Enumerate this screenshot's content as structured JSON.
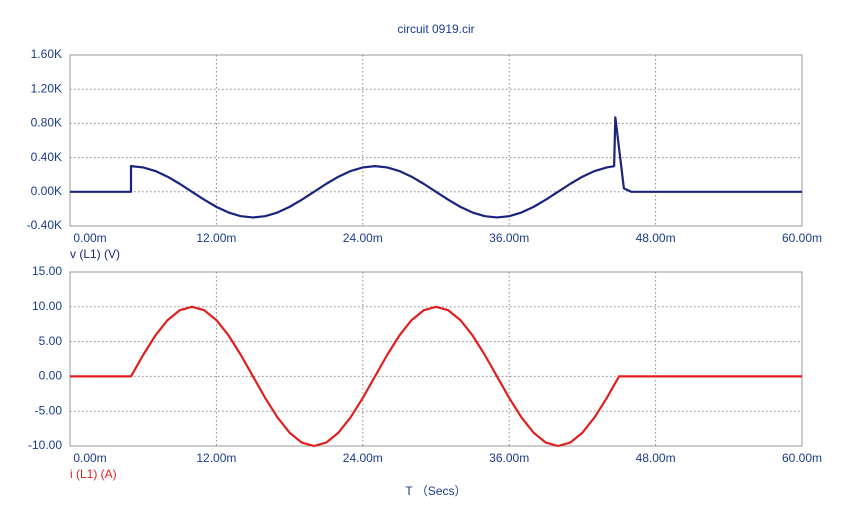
{
  "chart_data": [
    {
      "type": "line",
      "title": "circuit 0919.cir",
      "y_label": "v (L1) (V)",
      "y_label_color": "#1a237e",
      "x": [
        0,
        5,
        5,
        6,
        7,
        8,
        9,
        10,
        11,
        12,
        13,
        14,
        15,
        16,
        17,
        18,
        19,
        20,
        21,
        22,
        23,
        24,
        25,
        26,
        27,
        28,
        29,
        30,
        31,
        32,
        33,
        34,
        35,
        36,
        37,
        38,
        39,
        40,
        41,
        42,
        43,
        44,
        44.6,
        44.7,
        45.4,
        46,
        60
      ],
      "series": [
        {
          "color": "#1a237e",
          "values": [
            0,
            0,
            300,
            285.3,
            242.7,
            176.3,
            92.7,
            0,
            -92.7,
            -176.3,
            -242.7,
            -285.3,
            -300,
            -285.3,
            -242.7,
            -176.3,
            -92.7,
            0,
            92.7,
            176.3,
            242.7,
            285.3,
            300,
            285.3,
            242.7,
            176.3,
            92.7,
            0,
            -92.7,
            -176.3,
            -242.7,
            -285.3,
            -300,
            -285.3,
            -242.7,
            -176.3,
            -92.7,
            0,
            92.7,
            176.3,
            242.7,
            285.3,
            300,
            870,
            40,
            0,
            0
          ]
        }
      ],
      "xlim": [
        0,
        60
      ],
      "xticks": [
        {
          "value": 0,
          "label": "0.00m"
        },
        {
          "value": 12,
          "label": "12.00m"
        },
        {
          "value": 24,
          "label": "24.00m"
        },
        {
          "value": 36,
          "label": "36.00m"
        },
        {
          "value": 48,
          "label": "48.00m"
        },
        {
          "value": 60,
          "label": "60.00m"
        }
      ],
      "ylim": [
        -400,
        1600
      ],
      "yticks": [
        {
          "value": -400,
          "label": "-0.40K"
        },
        {
          "value": 0,
          "label": "0.00K"
        },
        {
          "value": 400,
          "label": "0.40K"
        },
        {
          "value": 800,
          "label": "0.80K"
        },
        {
          "value": 1200,
          "label": "1.20K"
        },
        {
          "value": 1600,
          "label": "1.60K"
        }
      ],
      "grid": true
    },
    {
      "type": "line",
      "y_label": "i (L1) (A)",
      "y_label_color": "#e02020",
      "x_label": "T （Secs）",
      "x": [
        0,
        5,
        6,
        7,
        8,
        9,
        10,
        11,
        12,
        13,
        14,
        15,
        16,
        17,
        18,
        19,
        20,
        21,
        22,
        23,
        24,
        25,
        26,
        27,
        28,
        29,
        30,
        31,
        32,
        33,
        34,
        35,
        36,
        37,
        38,
        39,
        40,
        41,
        42,
        43,
        44,
        45,
        60
      ],
      "series": [
        {
          "color": "#e02020",
          "values": [
            0,
            0,
            3.09,
            5.88,
            8.09,
            9.51,
            10,
            9.51,
            8.09,
            5.88,
            3.09,
            0,
            -3.09,
            -5.88,
            -8.09,
            -9.51,
            -10,
            -9.51,
            -8.09,
            -5.88,
            -3.09,
            0,
            3.09,
            5.88,
            8.09,
            9.51,
            10,
            9.51,
            8.09,
            5.88,
            3.09,
            0,
            -3.09,
            -5.88,
            -8.09,
            -9.51,
            -10,
            -9.51,
            -8.09,
            -5.88,
            -3.09,
            0,
            0
          ]
        }
      ],
      "xlim": [
        0,
        60
      ],
      "xticks": [
        {
          "value": 0,
          "label": "0.00m"
        },
        {
          "value": 12,
          "label": "12.00m"
        },
        {
          "value": 24,
          "label": "24.00m"
        },
        {
          "value": 36,
          "label": "36.00m"
        },
        {
          "value": 48,
          "label": "48.00m"
        },
        {
          "value": 60,
          "label": "60.00m"
        }
      ],
      "ylim": [
        -10,
        15
      ],
      "yticks": [
        {
          "value": -10,
          "label": "-10.00"
        },
        {
          "value": -5,
          "label": "-5.00"
        },
        {
          "value": 0,
          "label": "0.00"
        },
        {
          "value": 5,
          "label": "5.00"
        },
        {
          "value": 10,
          "label": "10.00"
        },
        {
          "value": 15,
          "label": "15.00"
        }
      ],
      "grid": true
    }
  ]
}
